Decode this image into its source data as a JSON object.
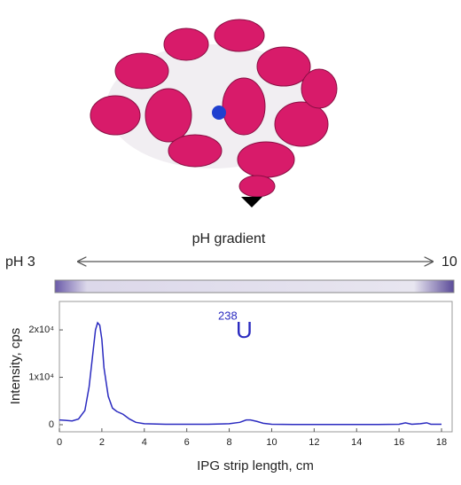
{
  "chart_data": {
    "type": "line",
    "ph_label": "pH gradient",
    "ph_start": "pH 3",
    "ph_end": "10",
    "annotation_mass": "238",
    "annotation_element": "U",
    "xlabel": "IPG strip length, cm",
    "ylabel": "Intensity, cps",
    "x": [
      0,
      0.3,
      0.6,
      0.9,
      1.2,
      1.4,
      1.6,
      1.7,
      1.8,
      1.9,
      2.0,
      2.1,
      2.3,
      2.5,
      2.7,
      3.0,
      3.3,
      3.6,
      4,
      5,
      6,
      7,
      8,
      8.5,
      8.8,
      9,
      9.3,
      9.6,
      10,
      11,
      12,
      13,
      14,
      15,
      16,
      16.3,
      16.6,
      17,
      17.3,
      17.5,
      18
    ],
    "series": [
      {
        "color": "#2b2bc0",
        "values": [
          1000,
          900,
          800,
          1200,
          3000,
          8000,
          16000,
          20000,
          21500,
          21000,
          18000,
          12000,
          6000,
          3500,
          2800,
          2200,
          1200,
          500,
          200,
          100,
          100,
          100,
          200,
          500,
          1000,
          1000,
          700,
          300,
          100,
          50,
          50,
          50,
          50,
          50,
          100,
          400,
          100,
          200,
          400,
          100,
          100
        ]
      }
    ],
    "xlim": [
      0,
      18.5
    ],
    "xticks": [
      0,
      2,
      4,
      6,
      8,
      10,
      12,
      14,
      16,
      18
    ],
    "ylim": [
      -1500,
      26000
    ],
    "yticks": [
      0,
      {
        "value": 10000,
        "label": "1x10⁴"
      },
      {
        "value": 20000,
        "label": "2x10⁴"
      }
    ]
  }
}
